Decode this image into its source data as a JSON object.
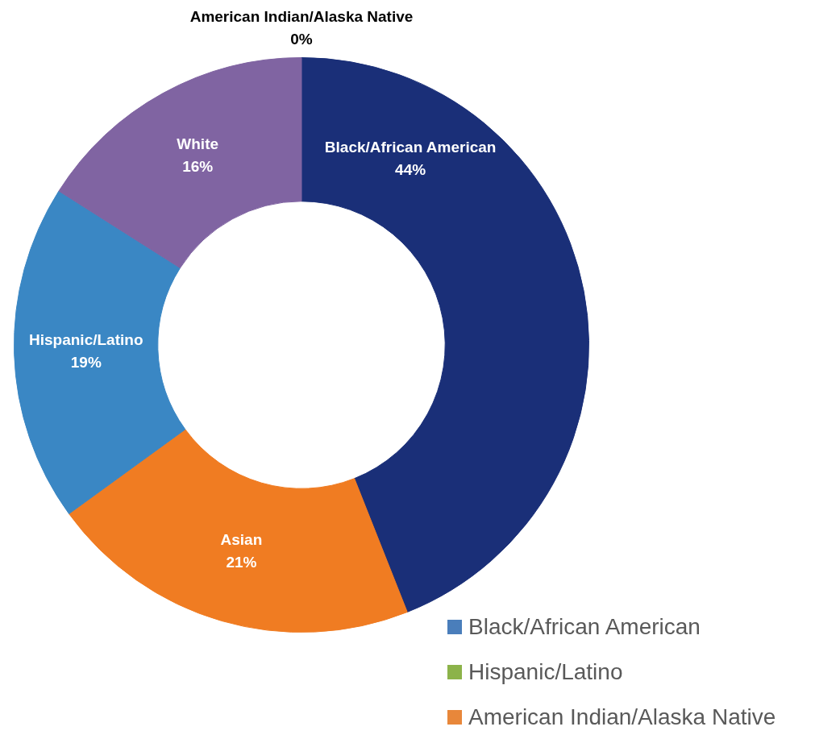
{
  "chart_data": [
    {
      "type": "donut",
      "categories": [
        "Black/African American",
        "Asian",
        "Hispanic/Latino",
        "White",
        "American Indian/Alaska Native"
      ],
      "values": [
        44,
        21,
        19,
        16,
        0
      ],
      "colors": [
        "#1a2f78",
        "#f07c22",
        "#3a87c4",
        "#8064a2",
        "#e8873a"
      ],
      "value_labels": [
        "44%",
        "21%",
        "19%",
        "16%",
        "0%"
      ],
      "legend": false
    },
    {
      "type": "other",
      "categories": [
        "Black/African American",
        "Hispanic/Latino",
        "American Indian/Alaska Native"
      ],
      "colors": [
        "#4a7ebb",
        "#8cb34a",
        "#e8873a"
      ]
    }
  ]
}
